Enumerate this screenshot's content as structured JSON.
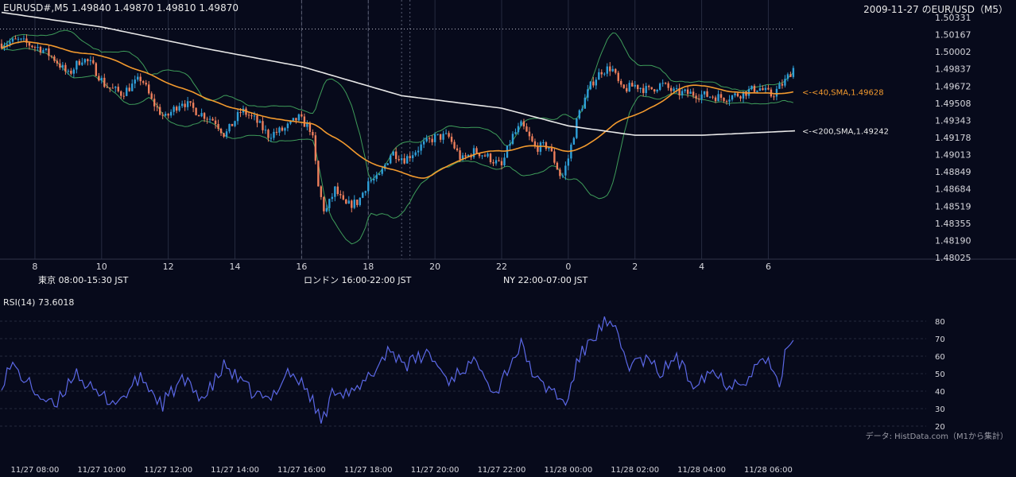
{
  "header": {
    "symbol": "EURUSD#,M5",
    "ohlc": "1.49840 1.49870 1.49810 1.49870",
    "right_title": "2009-11-27 のEUR/USD（M5）"
  },
  "sessions": [
    {
      "label": "東京 08:00-15:30 JST",
      "color": "#264e7f"
    },
    {
      "label": "ロンドン 16:00-22:00 JST",
      "color": "#8a5614"
    },
    {
      "label": "NY 22:00-07:00 JST",
      "color": "#2a6a44"
    }
  ],
  "indicator": {
    "label": "RSI(14) 73.6018"
  },
  "source_note": "データ: HistData.com（M1から集計）",
  "colors": {
    "background": "#070a1b",
    "bull": "#2f9fd8",
    "bear": "#ee7f5c",
    "sma40": "#f39a2e",
    "sma200": "#e8e8e8",
    "bollinger": "#3e9c5a",
    "rsi": "#5b68e6"
  },
  "chart_data": [
    {
      "type": "candlestick",
      "timeframe": "M5",
      "x_tick_labels": [
        "8",
        "10",
        "12",
        "14",
        "16",
        "18",
        "20",
        "22",
        "0",
        "2",
        "4",
        "6"
      ],
      "y_tick_labels": [
        "1.50331",
        "1.50167",
        "1.50002",
        "1.49837",
        "1.49672",
        "1.49508",
        "1.49343",
        "1.49178",
        "1.49013",
        "1.48849",
        "1.48684",
        "1.48519",
        "1.48355",
        "1.48190",
        "1.48025"
      ],
      "ylim": [
        1.48025,
        1.50331
      ],
      "x_range_hours": [
        7.0,
        30.8
      ],
      "reference_level": 1.5022,
      "price_path": [
        {
          "h": 7.0,
          "p": 1.5008
        },
        {
          "h": 7.5,
          "p": 1.5011
        },
        {
          "h": 8.2,
          "p": 1.5003
        },
        {
          "h": 8.6,
          "p": 1.4993
        },
        {
          "h": 9.0,
          "p": 1.4978
        },
        {
          "h": 9.4,
          "p": 1.4994
        },
        {
          "h": 9.7,
          "p": 1.4988
        },
        {
          "h": 10.1,
          "p": 1.4968
        },
        {
          "h": 10.6,
          "p": 1.496
        },
        {
          "h": 11.2,
          "p": 1.4975
        },
        {
          "h": 11.5,
          "p": 1.4953
        },
        {
          "h": 11.9,
          "p": 1.4936
        },
        {
          "h": 12.4,
          "p": 1.4953
        },
        {
          "h": 12.9,
          "p": 1.4942
        },
        {
          "h": 13.4,
          "p": 1.4934
        },
        {
          "h": 13.7,
          "p": 1.492
        },
        {
          "h": 14.2,
          "p": 1.4944
        },
        {
          "h": 14.6,
          "p": 1.4935
        },
        {
          "h": 15.0,
          "p": 1.492
        },
        {
          "h": 15.5,
          "p": 1.4926
        },
        {
          "h": 15.9,
          "p": 1.4937
        },
        {
          "h": 16.3,
          "p": 1.4925
        },
        {
          "h": 16.5,
          "p": 1.487
        },
        {
          "h": 16.7,
          "p": 1.4845
        },
        {
          "h": 17.0,
          "p": 1.4868
        },
        {
          "h": 17.3,
          "p": 1.4852
        },
        {
          "h": 17.7,
          "p": 1.4856
        },
        {
          "h": 18.0,
          "p": 1.4876
        },
        {
          "h": 18.3,
          "p": 1.4878
        },
        {
          "h": 18.7,
          "p": 1.4904
        },
        {
          "h": 19.1,
          "p": 1.4897
        },
        {
          "h": 19.6,
          "p": 1.491
        },
        {
          "h": 20.0,
          "p": 1.4918
        },
        {
          "h": 20.4,
          "p": 1.4919
        },
        {
          "h": 20.8,
          "p": 1.4896
        },
        {
          "h": 21.2,
          "p": 1.4905
        },
        {
          "h": 21.6,
          "p": 1.4899
        },
        {
          "h": 22.0,
          "p": 1.489
        },
        {
          "h": 22.3,
          "p": 1.4918
        },
        {
          "h": 22.6,
          "p": 1.493
        },
        {
          "h": 23.0,
          "p": 1.4908
        },
        {
          "h": 23.4,
          "p": 1.491
        },
        {
          "h": 23.8,
          "p": 1.4878
        },
        {
          "h": 24.0,
          "p": 1.4898
        },
        {
          "h": 24.3,
          "p": 1.494
        },
        {
          "h": 24.7,
          "p": 1.497
        },
        {
          "h": 25.0,
          "p": 1.4982
        },
        {
          "h": 25.3,
          "p": 1.4985
        },
        {
          "h": 25.6,
          "p": 1.4963
        },
        {
          "h": 26.0,
          "p": 1.4968
        },
        {
          "h": 26.4,
          "p": 1.4963
        },
        {
          "h": 26.8,
          "p": 1.4969
        },
        {
          "h": 27.2,
          "p": 1.4961
        },
        {
          "h": 27.7,
          "p": 1.496
        },
        {
          "h": 28.2,
          "p": 1.4958
        },
        {
          "h": 28.7,
          "p": 1.4956
        },
        {
          "h": 29.2,
          "p": 1.496
        },
        {
          "h": 29.7,
          "p": 1.4966
        },
        {
          "h": 30.1,
          "p": 1.4958
        },
        {
          "h": 30.5,
          "p": 1.4972
        },
        {
          "h": 30.8,
          "p": 1.4987
        }
      ],
      "sma200_path": [
        {
          "h": 7.0,
          "p": 1.5038
        },
        {
          "h": 10.0,
          "p": 1.5024
        },
        {
          "h": 13.0,
          "p": 1.5004
        },
        {
          "h": 16.0,
          "p": 1.4986
        },
        {
          "h": 19.0,
          "p": 1.4958
        },
        {
          "h": 22.0,
          "p": 1.4946
        },
        {
          "h": 24.0,
          "p": 1.4929
        },
        {
          "h": 26.0,
          "p": 1.492
        },
        {
          "h": 28.0,
          "p": 1.492
        },
        {
          "h": 30.0,
          "p": 1.4923
        },
        {
          "h": 30.8,
          "p": 1.49242
        }
      ],
      "series": [
        {
          "name": "<-<40,SMA,1.49628",
          "color": "#f39a2e"
        },
        {
          "name": "<-<200,SMA,1.49242",
          "color": "#e8e8e8"
        }
      ]
    },
    {
      "type": "line",
      "y_tick_labels": [
        "80",
        "70",
        "60",
        "50",
        "40",
        "30",
        "20"
      ],
      "ylim": [
        15,
        85
      ],
      "x_tick_labels": [
        "11/27 08:00",
        "11/27 10:00",
        "11/27 12:00",
        "11/27 14:00",
        "11/27 16:00",
        "11/27 18:00",
        "11/27 20:00",
        "11/27 22:00",
        "11/28 00:00",
        "11/28 02:00",
        "11/28 04:00",
        "11/28 06:00"
      ],
      "rsi_path": [
        {
          "h": 7.0,
          "v": 45
        },
        {
          "h": 7.3,
          "v": 55
        },
        {
          "h": 8.0,
          "v": 40
        },
        {
          "h": 8.6,
          "v": 30
        },
        {
          "h": 9.2,
          "v": 52
        },
        {
          "h": 9.8,
          "v": 38
        },
        {
          "h": 10.5,
          "v": 34
        },
        {
          "h": 11.2,
          "v": 48
        },
        {
          "h": 11.8,
          "v": 32
        },
        {
          "h": 12.4,
          "v": 46
        },
        {
          "h": 13.1,
          "v": 36
        },
        {
          "h": 13.7,
          "v": 55
        },
        {
          "h": 14.3,
          "v": 42
        },
        {
          "h": 15.0,
          "v": 34
        },
        {
          "h": 15.6,
          "v": 52
        },
        {
          "h": 16.2,
          "v": 40
        },
        {
          "h": 16.6,
          "v": 22
        },
        {
          "h": 17.0,
          "v": 42
        },
        {
          "h": 17.6,
          "v": 38
        },
        {
          "h": 18.2,
          "v": 52
        },
        {
          "h": 18.6,
          "v": 64
        },
        {
          "h": 19.2,
          "v": 55
        },
        {
          "h": 19.8,
          "v": 62
        },
        {
          "h": 20.4,
          "v": 46
        },
        {
          "h": 20.9,
          "v": 54
        },
        {
          "h": 21.4,
          "v": 56
        },
        {
          "h": 21.8,
          "v": 38
        },
        {
          "h": 22.3,
          "v": 58
        },
        {
          "h": 22.6,
          "v": 66
        },
        {
          "h": 23.1,
          "v": 44
        },
        {
          "h": 23.6,
          "v": 40
        },
        {
          "h": 23.9,
          "v": 31
        },
        {
          "h": 24.3,
          "v": 58
        },
        {
          "h": 24.7,
          "v": 70
        },
        {
          "h": 25.1,
          "v": 79
        },
        {
          "h": 25.4,
          "v": 74
        },
        {
          "h": 25.8,
          "v": 55
        },
        {
          "h": 26.3,
          "v": 58
        },
        {
          "h": 26.8,
          "v": 50
        },
        {
          "h": 27.2,
          "v": 60
        },
        {
          "h": 27.7,
          "v": 45
        },
        {
          "h": 28.3,
          "v": 52
        },
        {
          "h": 28.8,
          "v": 44
        },
        {
          "h": 29.4,
          "v": 48
        },
        {
          "h": 29.9,
          "v": 60
        },
        {
          "h": 30.3,
          "v": 42
        },
        {
          "h": 30.6,
          "v": 68
        },
        {
          "h": 30.8,
          "v": 73.6
        }
      ]
    }
  ]
}
